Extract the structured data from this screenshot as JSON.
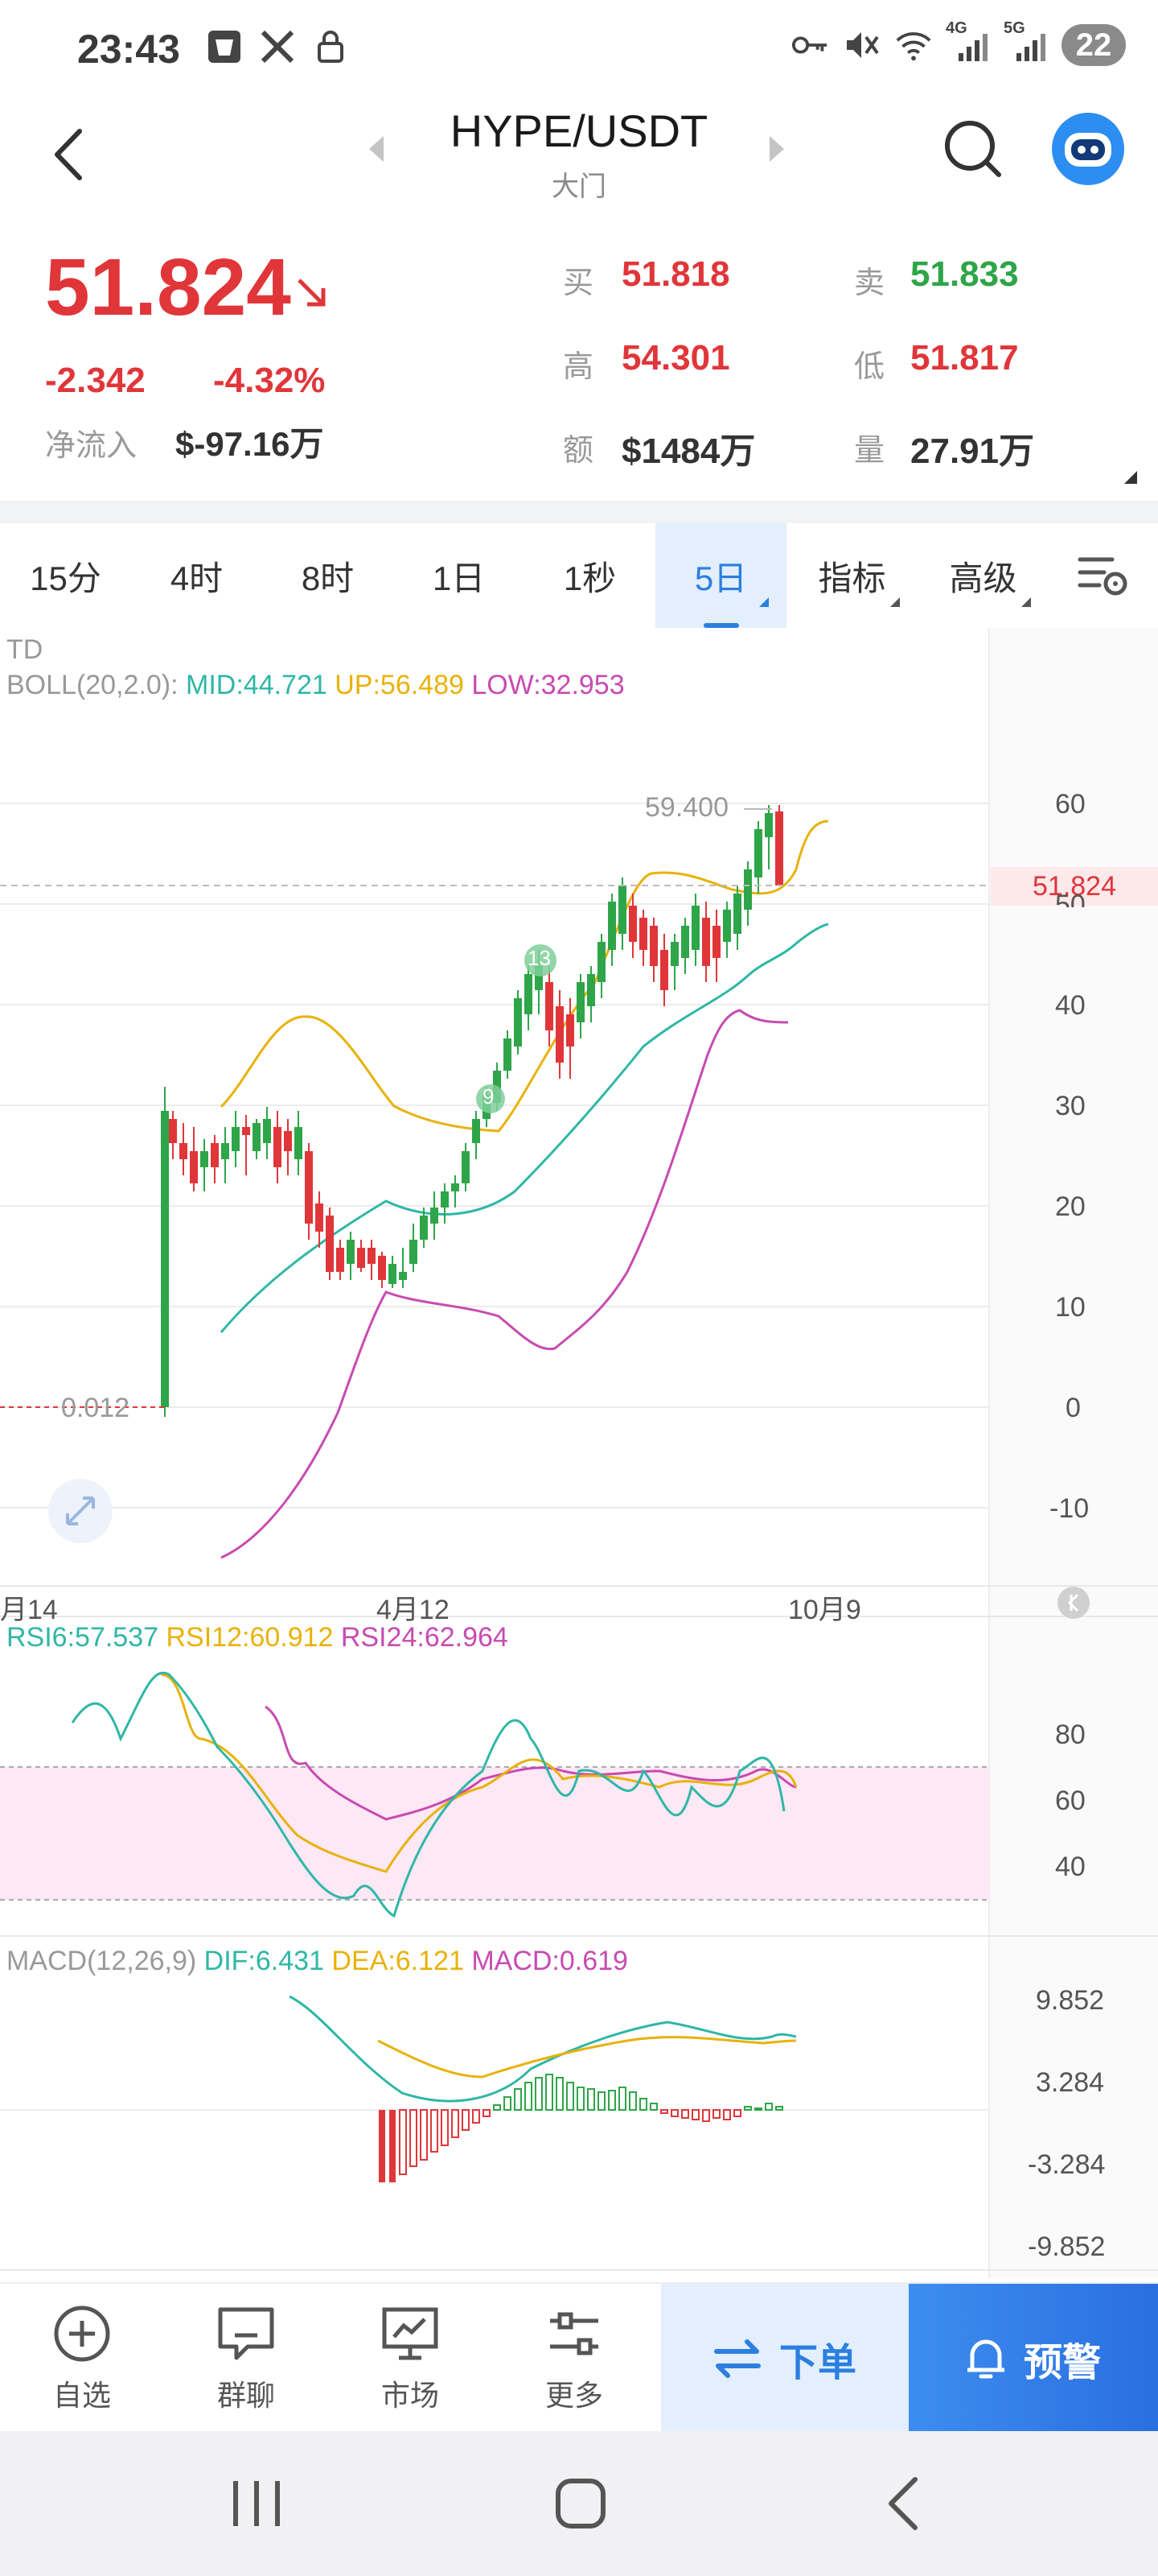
{
  "status_bar": {
    "time": "23:43",
    "battery": "22",
    "net_4g": "4G",
    "net_5g": "5G"
  },
  "header": {
    "title": "HYPE/USDT",
    "subtitle": "大门"
  },
  "price": {
    "last": "51.824",
    "change": "-2.342",
    "change_pct": "-4.32%",
    "inflow_label": "净流入",
    "inflow_value": "$-97.16万",
    "buy_label": "买",
    "buy_value": "51.818",
    "sell_label": "卖",
    "sell_value": "51.833",
    "high_label": "高",
    "high_value": "54.301",
    "low_label": "低",
    "low_value": "51.817",
    "amount_label": "额",
    "amount_value": "$1484万",
    "volume_label": "量",
    "volume_value": "27.91万"
  },
  "tabs": [
    {
      "label": "15分"
    },
    {
      "label": "4时"
    },
    {
      "label": "8时"
    },
    {
      "label": "1日"
    },
    {
      "label": "1秒"
    },
    {
      "label": "5日",
      "active": true
    },
    {
      "label": "指标"
    },
    {
      "label": "高级"
    }
  ],
  "main_chart": {
    "td_label": "TD",
    "boll_label": "BOLL(20,2.0):",
    "boll_mid": "MID:44.721",
    "boll_up": "UP:56.489",
    "boll_low": "LOW:32.953",
    "max_label": "59.400",
    "min_label": "0.012",
    "current_label": "51.824",
    "td_markers": [
      "9",
      "13"
    ],
    "y_ticks": [
      "60",
      "50",
      "40",
      "30",
      "20",
      "10",
      "0",
      "-10"
    ],
    "x_ticks": [
      "月14",
      "4月12",
      "10月9"
    ]
  },
  "rsi": {
    "rsi6": "RSI6:57.537",
    "rsi12": "RSI12:60.912",
    "rsi24": "RSI24:62.964",
    "y_ticks": [
      "80",
      "60",
      "40"
    ]
  },
  "macd": {
    "label": "MACD(12,26,9)",
    "dif": "DIF:6.431",
    "dea": "DEA:6.121",
    "macd": "MACD:0.619",
    "y_ticks": [
      "9.852",
      "3.284",
      "-3.284",
      "-9.852"
    ]
  },
  "bottom_nav": {
    "watchlist": "自选",
    "group_chat": "群聊",
    "market": "市场",
    "more": "更多",
    "order": "下单",
    "alert": "预警"
  },
  "colors": {
    "up": "#2ea548",
    "down": "#e0363a",
    "accent": "#2b7fe0",
    "boll_mid": "#2fb7a6",
    "boll_up": "#e8b20a",
    "boll_low": "#c84bb0"
  }
}
